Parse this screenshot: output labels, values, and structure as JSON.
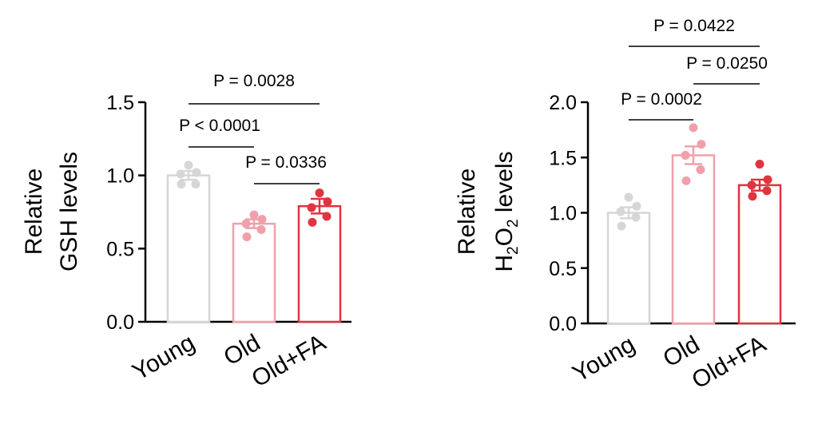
{
  "chart_data": [
    {
      "type": "bar",
      "ylabel": [
        "Relative",
        "GSH levels"
      ],
      "categories": [
        "Young",
        "Old",
        "Old+FA"
      ],
      "colors": [
        "#d6d6d6",
        "#f0a0aa",
        "#e0343f"
      ],
      "fill_colors": [
        "#ffffff",
        "#ffffff",
        "#ffffff"
      ],
      "ylim": [
        0,
        1.5
      ],
      "yticks": [
        0.0,
        0.5,
        1.0,
        1.5
      ],
      "ytick_labels": [
        "0.0",
        "0.5",
        "1.0",
        "1.5"
      ],
      "means": [
        1.0,
        0.67,
        0.79
      ],
      "sem": [
        0.03,
        0.03,
        0.05
      ],
      "points": [
        [
          1.07,
          1.02,
          1.01,
          0.94,
          0.94
        ],
        [
          0.73,
          0.7,
          0.67,
          0.63,
          0.58
        ],
        [
          0.88,
          0.82,
          0.78,
          0.72,
          0.68
        ]
      ],
      "comparisons": [
        {
          "groups": [
            0,
            2
          ],
          "label": "P = 0.0028"
        },
        {
          "groups": [
            0,
            1
          ],
          "label": "P < 0.0001"
        },
        {
          "groups": [
            1,
            2
          ],
          "label": "P = 0.0336"
        }
      ]
    },
    {
      "type": "bar",
      "ylabel": [
        "Relative",
        "H",
        "2",
        "O",
        "2",
        " levels"
      ],
      "categories": [
        "Young",
        "Old",
        "Old+FA"
      ],
      "colors": [
        "#d6d6d6",
        "#f0a0aa",
        "#e0343f"
      ],
      "fill_colors": [
        "#ffffff",
        "#ffffff",
        "#ffffff"
      ],
      "ylim": [
        0,
        2.0
      ],
      "yticks": [
        0.0,
        0.5,
        1.0,
        1.5,
        2.0
      ],
      "ytick_labels": [
        "0.0",
        "0.5",
        "1.0",
        "1.5",
        "2.0"
      ],
      "means": [
        1.0,
        1.52,
        1.25
      ],
      "sem": [
        0.05,
        0.08,
        0.05
      ],
      "points": [
        [
          1.14,
          1.06,
          1.01,
          0.96,
          0.88
        ],
        [
          1.77,
          1.62,
          1.52,
          1.39,
          1.29
        ],
        [
          1.44,
          1.3,
          1.25,
          1.2,
          1.15
        ]
      ],
      "comparisons": [
        {
          "groups": [
            0,
            2
          ],
          "label": "P = 0.0422"
        },
        {
          "groups": [
            1,
            2
          ],
          "label": "P = 0.0250"
        },
        {
          "groups": [
            0,
            1
          ],
          "label": "P = 0.0002"
        }
      ]
    }
  ]
}
